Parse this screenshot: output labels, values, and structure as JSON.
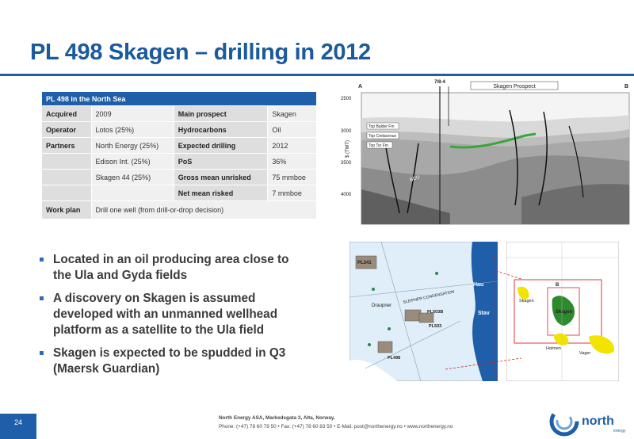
{
  "title": "PL 498 Skagen – drilling in 2012",
  "table": {
    "header": "PL 498 in the North Sea",
    "rows": [
      [
        "Acquired",
        "2009",
        "Main prospect",
        "Skagen"
      ],
      [
        "Operator",
        "Lotos (25%)",
        "Hydrocarbons",
        "Oil"
      ],
      [
        "Partners",
        "North Energy (25%)",
        "Expected drilling",
        "2012"
      ],
      [
        "",
        "Edison Int. (25%)",
        "PoS",
        "36%"
      ],
      [
        "",
        "Skagen 44 (25%)",
        "Gross mean unrisked",
        "75 mmboe"
      ],
      [
        "",
        "",
        "Net mean risked",
        "7 mmboe"
      ]
    ],
    "workplan_label": "Work plan",
    "workplan_value": "Drill one well (from drill-or-drop decision)"
  },
  "bullets": [
    "Located in an oil producing area close to the Ula and Gyda fields",
    "A discovery on Skagen is assumed developed with an unmanned wellhead platform as a satellite to the Ula field",
    "Skagen is expected to be spudded in Q3 (Maersk Guardian)"
  ],
  "seismic": {
    "label_a": "A",
    "label_b": "B",
    "well": "7/8-4",
    "prospect": "Skagen Prospect",
    "axis": "$ (TWT)",
    "ticks": [
      "2500",
      "3000",
      "3500",
      "4000"
    ],
    "horizons": [
      "Top Balder Fm",
      "Top Cretaceous",
      "Top Tor Fm"
    ],
    "bcu": "BCU"
  },
  "map1": {
    "labels": [
      "PL341",
      "Draupner",
      "SLEIPNER CONDENSATION",
      "PL503B",
      "PL503",
      "PL498",
      "Hau",
      "Stav"
    ]
  },
  "map2": {
    "labels": [
      "Skagen",
      "Skagen",
      "Hoimen",
      "Vager",
      "B"
    ]
  },
  "page_number": "24",
  "footer": {
    "line1": "North Energy ASA, Markedsgata 3, Alta, Norway.",
    "line2": "Phone: (+47) 78 60 79 50  • Fax: (+47) 78 60 83 50  • E-Mail: post@northenergy.no •  www.northenergy.no"
  },
  "logo": {
    "name": "north",
    "sub": "energy"
  },
  "colors": {
    "brand_blue": "#1f5ea8",
    "title_blue": "#1b5a9c",
    "label_gray": "#dedede",
    "value_gray": "#f0f0f0"
  }
}
